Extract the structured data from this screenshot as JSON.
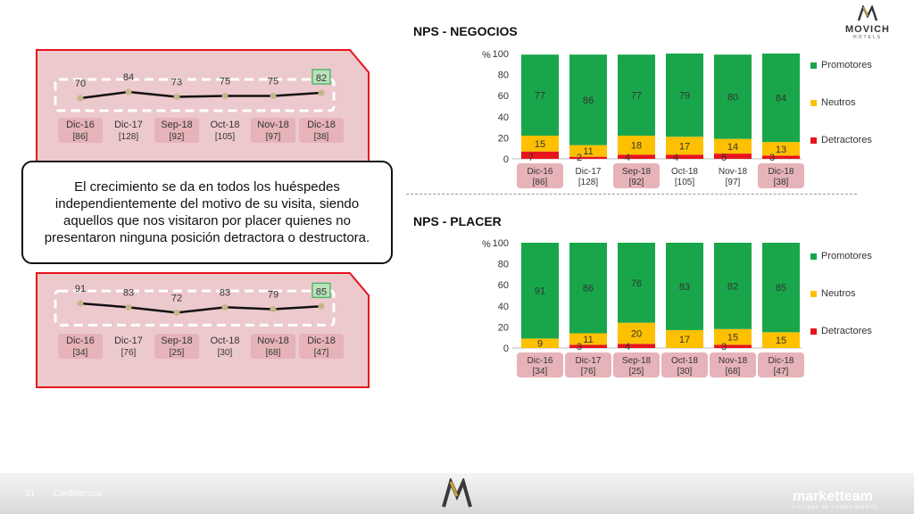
{
  "brand": {
    "name": "MOVICH",
    "sub": "HOTELS"
  },
  "colors": {
    "promotores": "#19a64a",
    "neutros": "#ffc000",
    "detractores": "#e8141c",
    "panel_fill": "#ecc9cc",
    "panel_border": "#e8141c",
    "chip": "#e6b3b8"
  },
  "callout": {
    "text": "El crecimiento se da en todos los huéspedes independientemente del motivo de su visita, siendo aquellos que nos visitaron por placer quienes no presentaron ninguna posición detractora o destructora."
  },
  "footer": {
    "page": "31",
    "confidential": "Confidencial",
    "brand": "marketteam",
    "brand_sub": "CULTURA DE CONOCIMIENTO"
  },
  "legend": {
    "promotores": "Promotores",
    "neutros": "Neutros",
    "detractores": "Detractores"
  },
  "chart_data": [
    {
      "type": "line",
      "categories": [
        "Dic-16",
        "Dic-17",
        "Sep-18",
        "Oct-18",
        "Nov-18",
        "Dic-18"
      ],
      "sub_labels": [
        "[86]",
        "[128]",
        "[92]",
        "[105]",
        "[97]",
        "[38]"
      ],
      "highlighted_categories": [
        0,
        2,
        4,
        5
      ],
      "values": [
        70,
        84,
        73,
        75,
        75,
        82
      ],
      "highlighted_point": 5
    },
    {
      "type": "line",
      "categories": [
        "Dic-16",
        "Dic-17",
        "Sep-18",
        "Oct-18",
        "Nov-18",
        "Dic-18"
      ],
      "sub_labels": [
        "[34]",
        "[76]",
        "[25]",
        "[30]",
        "[68]",
        "[47]"
      ],
      "highlighted_categories": [
        0,
        2,
        4,
        5
      ],
      "values": [
        91,
        83,
        72,
        83,
        79,
        85
      ],
      "highlighted_point": 5
    },
    {
      "type": "bar",
      "stacked": true,
      "title": "NPS - NEGOCIOS",
      "ylabel": "%",
      "ylim": [
        0,
        100
      ],
      "yticks": [
        "0",
        "20",
        "40",
        "60",
        "80",
        "100"
      ],
      "categories": [
        "Dic-16",
        "Dic-17",
        "Sep-18",
        "Oct-18",
        "Nov-18",
        "Dic-18"
      ],
      "sub_labels": [
        "[86]",
        "[128]",
        "[92]",
        "[105]",
        "[97]",
        "[38]"
      ],
      "highlighted_categories": [
        0,
        2,
        5
      ],
      "series": [
        {
          "name": "Detractores",
          "values": [
            7,
            2,
            4,
            4,
            5,
            3
          ]
        },
        {
          "name": "Neutros",
          "values": [
            15,
            11,
            18,
            17,
            14,
            13
          ]
        },
        {
          "name": "Promotores",
          "values": [
            77,
            86,
            77,
            79,
            80,
            84
          ]
        }
      ],
      "legend_position": "right"
    },
    {
      "type": "bar",
      "stacked": true,
      "title": "NPS - PLACER",
      "ylabel": "%",
      "ylim": [
        0,
        100
      ],
      "yticks": [
        "0",
        "20",
        "40",
        "60",
        "80",
        "100"
      ],
      "categories": [
        "Dic-16",
        "Dic-17",
        "Sep-18",
        "Oct-18",
        "Nov-18",
        "Dic-18"
      ],
      "sub_labels": [
        "[34]",
        "[76]",
        "[25]",
        "[30]",
        "[68]",
        "[47]"
      ],
      "highlighted_categories": [
        0,
        1,
        2,
        3,
        4,
        5
      ],
      "series": [
        {
          "name": "Detractores",
          "values": [
            0,
            3,
            4,
            0,
            3,
            0
          ]
        },
        {
          "name": "Neutros",
          "values": [
            9,
            11,
            20,
            17,
            15,
            15
          ]
        },
        {
          "name": "Promotores",
          "values": [
            91,
            86,
            76,
            83,
            82,
            85
          ]
        }
      ],
      "legend_position": "right"
    }
  ]
}
